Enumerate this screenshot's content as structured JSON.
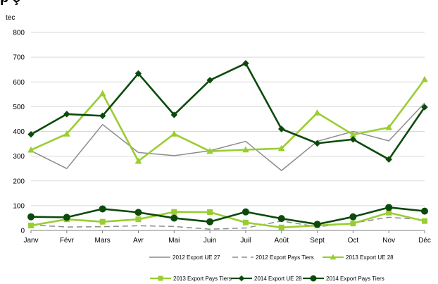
{
  "chart_data": {
    "type": "line",
    "title": "",
    "ylabel": "tec",
    "xlabel": "",
    "ylim": [
      0,
      800
    ],
    "yticks": [
      0,
      100,
      200,
      300,
      400,
      500,
      600,
      700,
      800
    ],
    "grid": "horizontal",
    "legend_position": "bottom",
    "categories": [
      "Janv",
      "Févr",
      "Mars",
      "Avr",
      "Mai",
      "Juin",
      "Juil",
      "Août",
      "Sept",
      "Oct",
      "Nov",
      "Déc"
    ],
    "series": [
      {
        "name": "2012 Export UE 27",
        "color": "#8c8c8c",
        "dash": "solid",
        "marker": "none",
        "values": [
          322,
          250,
          428,
          315,
          302,
          322,
          360,
          242,
          360,
          400,
          362,
          515
        ]
      },
      {
        "name": "2012 Export Pays Tiers",
        "color": "#8c8c8c",
        "dash": "dashed",
        "marker": "none",
        "values": [
          22,
          14,
          15,
          19,
          16,
          5,
          10,
          38,
          15,
          30,
          53,
          44
        ]
      },
      {
        "name": "2013 Export UE 28",
        "color": "#9acd32",
        "dash": "solid",
        "marker": "triangle",
        "values": [
          325,
          390,
          553,
          280,
          390,
          320,
          326,
          331,
          475,
          387,
          416,
          610
        ]
      },
      {
        "name": "2013 Export Pays Tiers",
        "color": "#9acd32",
        "dash": "solid",
        "marker": "square",
        "values": [
          20,
          45,
          35,
          45,
          75,
          74,
          32,
          12,
          20,
          28,
          72,
          38
        ]
      },
      {
        "name": "2014 Export UE 28",
        "color": "#0b4a0b",
        "dash": "solid",
        "marker": "diamond",
        "values": [
          388,
          470,
          463,
          634,
          467,
          607,
          675,
          410,
          352,
          368,
          287,
          498
        ]
      },
      {
        "name": "2014 Export Pays Tiers",
        "color": "#0b4a0b",
        "dash": "solid",
        "marker": "circle",
        "values": [
          55,
          53,
          87,
          73,
          50,
          35,
          75,
          48,
          25,
          55,
          93,
          78
        ]
      }
    ]
  }
}
